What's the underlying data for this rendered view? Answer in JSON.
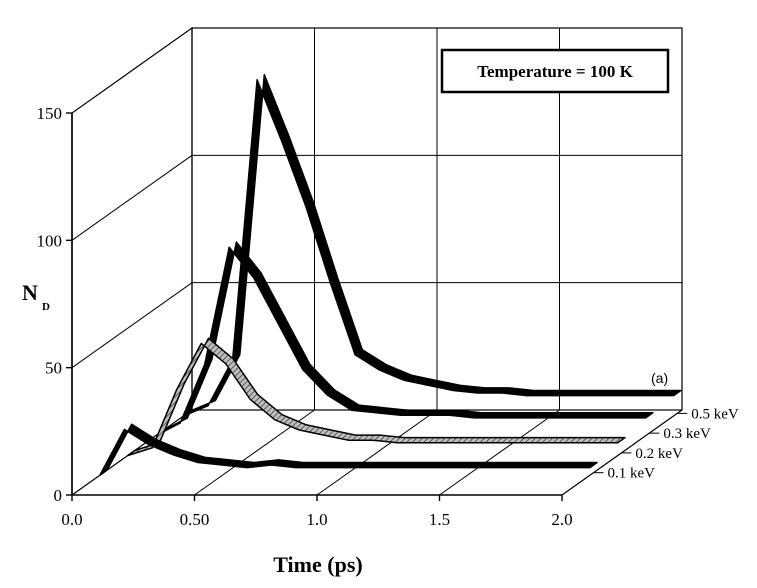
{
  "chart_data": {
    "type": "area",
    "title": "",
    "legend_box": "Temperature = 100 K",
    "annotation": "(a)",
    "xlabel": "Time (ps)",
    "ylabel": "N",
    "ylabel_sub": "D",
    "xlim": [
      0,
      2.0
    ],
    "ylim": [
      0,
      150
    ],
    "x_ticks": [
      "0.0",
      "0.50",
      "1.0",
      "1.5",
      "2.0"
    ],
    "y_ticks": [
      "0",
      "50",
      "100",
      "150"
    ],
    "grid": true,
    "x": [
      0,
      0.1,
      0.2,
      0.3,
      0.4,
      0.5,
      0.6,
      0.7,
      0.8,
      0.9,
      1.0,
      1.1,
      1.2,
      1.3,
      1.4,
      1.5,
      1.6,
      1.7,
      1.8,
      1.9,
      2.0
    ],
    "series": [
      {
        "name": "0.1 keV",
        "fill": "#000000",
        "values": [
          0,
          18,
          12,
          8,
          5,
          4,
          3,
          4,
          3,
          3,
          3,
          3,
          3,
          3,
          3,
          3,
          3,
          3,
          3,
          3,
          3
        ]
      },
      {
        "name": "0.2 keV",
        "fill": "#888888",
        "values": [
          0,
          3,
          26,
          44,
          36,
          22,
          14,
          10,
          8,
          6,
          6,
          5,
          5,
          5,
          5,
          5,
          5,
          5,
          5,
          5,
          5
        ]
      },
      {
        "name": "0.3 keV",
        "fill": "#000000",
        "values": [
          0,
          5,
          28,
          74,
          62,
          44,
          26,
          16,
          10,
          9,
          8,
          8,
          8,
          7,
          7,
          7,
          7,
          7,
          7,
          7,
          7
        ]
      },
      {
        "name": "0.5 keV",
        "fill": "#000000",
        "values": [
          0,
          4,
          22,
          132,
          108,
          82,
          52,
          24,
          18,
          14,
          12,
          10,
          9,
          9,
          8,
          8,
          8,
          8,
          8,
          8,
          8
        ]
      }
    ]
  }
}
